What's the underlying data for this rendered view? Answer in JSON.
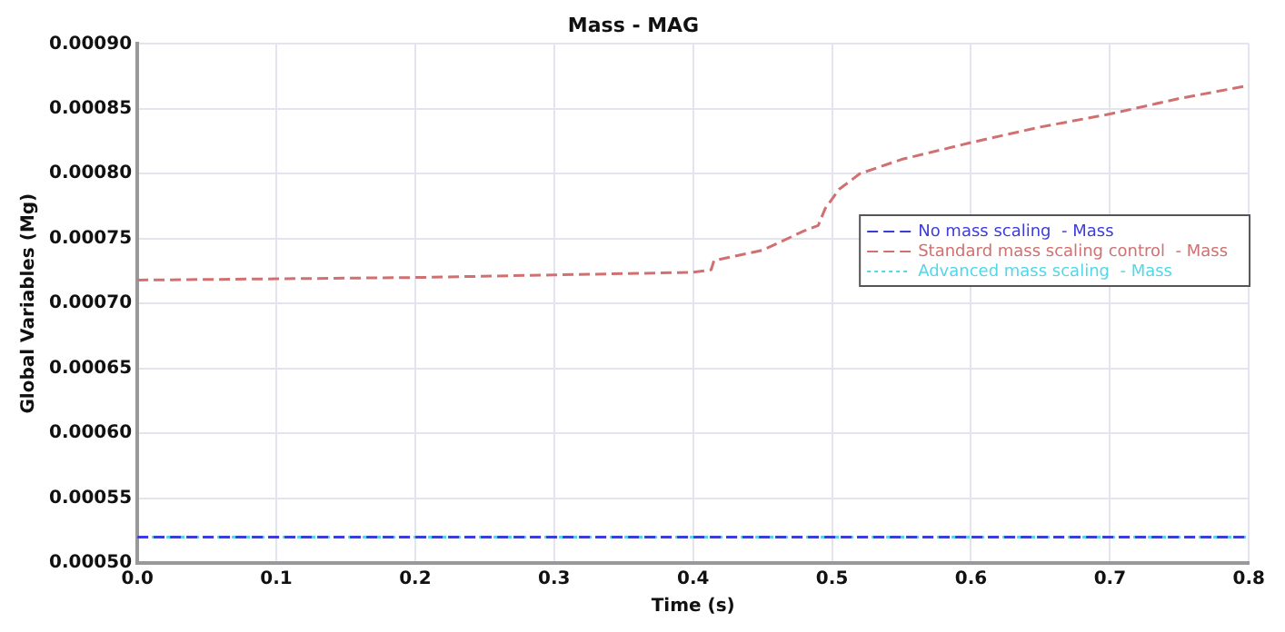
{
  "chart_data": {
    "type": "line",
    "title": "Mass - MAG",
    "xlabel": "Time (s)",
    "ylabel": "Global Variables (Mg)",
    "xlim": [
      0,
      0.8
    ],
    "xticks": [
      {
        "value": 0,
        "label": "0.0"
      },
      0.1,
      0.2,
      0.3,
      0.4,
      0.5,
      0.6,
      0.7,
      0.8
    ],
    "ylim": [
      0.0005,
      0.0009
    ],
    "yticks": [
      {
        "value": 0.0005,
        "label": "0.00050"
      },
      {
        "value": 0.00055,
        "label": "0.00055"
      },
      {
        "value": 0.0006,
        "label": "0.00060"
      },
      {
        "value": 0.00065,
        "label": "0.00065"
      },
      {
        "value": 0.0007,
        "label": "0.00070"
      },
      {
        "value": 0.00075,
        "label": "0.00075"
      },
      {
        "value": 0.0008,
        "label": "0.00080"
      },
      {
        "value": 0.00085,
        "label": "0.00085"
      },
      {
        "value": 0.0009,
        "label": "0.00090"
      }
    ],
    "grid": true,
    "legend": "right",
    "marker": "none",
    "line_style": "dashed",
    "series": [
      {
        "name": "No mass scaling  - Mass",
        "color": "#3c3cd8",
        "x": [
          0,
          0.8
        ],
        "values": [
          0.00052,
          0.00052
        ]
      },
      {
        "name": "Standard mass scaling control  - Mass",
        "color": "#d07070",
        "x": [
          0,
          0.1,
          0.2,
          0.3,
          0.4,
          0.413,
          0.415,
          0.45,
          0.48,
          0.49,
          0.495,
          0.505,
          0.52,
          0.55,
          0.6,
          0.65,
          0.7,
          0.75,
          0.8
        ],
        "values": [
          0.000718,
          0.000719,
          0.00072,
          0.000722,
          0.000724,
          0.000726,
          0.000733,
          0.000741,
          0.000756,
          0.00076,
          0.000773,
          0.000788,
          0.0008,
          0.000811,
          0.000824,
          0.000836,
          0.000846,
          0.000858,
          0.000868
        ]
      },
      {
        "name": "Advanced mass scaling  - Mass",
        "color": "#50d8e8",
        "x": [
          0,
          0.8
        ],
        "values": [
          0.00052,
          0.00052
        ],
        "line_style": "dotted"
      }
    ]
  }
}
